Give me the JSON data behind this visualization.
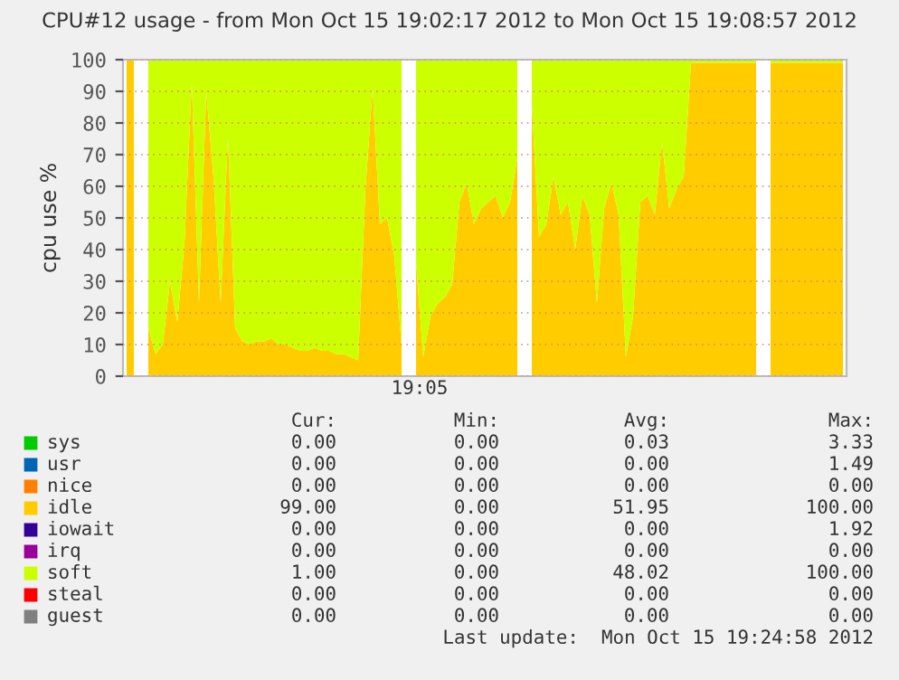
{
  "chart_data": {
    "type": "area",
    "stacked": true,
    "title": "CPU#12 usage - from Mon Oct 15 19:02:17 2012 to Mon Oct 15 19:08:57 2012",
    "ylabel": "cpu use %",
    "categories": [
      null,
      null,
      null,
      null,
      null,
      null,
      null,
      null,
      null,
      null,
      null,
      null,
      null,
      null,
      null,
      null,
      null,
      null,
      null,
      null,
      null,
      null,
      null,
      null,
      null,
      null,
      null,
      null,
      null,
      null,
      null,
      null,
      null,
      null,
      null,
      null,
      null,
      null,
      null,
      null,
      null,
      null,
      null,
      null,
      null,
      null,
      null,
      null,
      null,
      null,
      null,
      null,
      null,
      null,
      null,
      null,
      null,
      null,
      null,
      null,
      null,
      null,
      null,
      null,
      null,
      null,
      null,
      null,
      null,
      null,
      null,
      null,
      null,
      null,
      null,
      null,
      null,
      null,
      null,
      null,
      null,
      null,
      null,
      null,
      null,
      null,
      null,
      null,
      null,
      null,
      null,
      null,
      null,
      null,
      null,
      null,
      null,
      null,
      null,
      null
    ],
    "series": [
      {
        "name": "sys",
        "color": "#00cc00",
        "values": [
          null,
          null,
          null,
          null,
          null,
          null,
          null,
          null,
          null,
          null,
          null,
          null,
          null,
          null,
          null,
          null,
          null,
          null,
          null,
          null,
          null,
          null,
          null,
          null,
          null,
          null,
          null,
          null,
          null,
          null,
          null,
          null,
          null,
          null,
          null,
          null,
          null,
          null,
          null,
          null,
          null,
          null,
          null,
          null,
          null,
          null,
          null,
          null,
          null,
          null,
          null,
          null,
          null,
          null,
          null,
          null,
          null,
          null,
          null,
          null,
          null,
          null,
          null,
          null,
          null,
          null,
          null,
          null,
          null,
          null,
          null,
          null,
          null,
          null,
          null,
          null,
          null,
          null,
          null,
          null,
          null,
          null,
          null,
          null,
          null,
          null,
          null,
          null,
          null,
          null,
          null,
          null,
          null,
          null,
          null,
          null,
          null,
          null,
          null,
          null
        ]
      },
      {
        "name": "usr",
        "color": "#0066b3",
        "values": [
          null,
          null,
          null,
          null,
          null,
          null,
          null,
          null,
          null,
          null,
          null,
          null,
          null,
          null,
          null,
          null,
          null,
          null,
          null,
          null,
          null,
          null,
          null,
          null,
          null,
          null,
          null,
          null,
          null,
          null,
          null,
          null,
          null,
          null,
          null,
          null,
          null,
          null,
          null,
          null,
          null,
          null,
          null,
          null,
          null,
          null,
          null,
          null,
          null,
          null,
          null,
          null,
          null,
          null,
          null,
          null,
          null,
          null,
          null,
          null,
          null,
          null,
          null,
          null,
          null,
          null,
          null,
          null,
          null,
          null,
          null,
          null,
          null,
          null,
          null,
          null,
          null,
          null,
          null,
          null,
          null,
          null,
          null,
          null,
          null,
          null,
          null,
          null,
          null,
          null,
          null,
          null,
          null,
          null,
          null,
          null,
          null,
          null,
          null,
          null
        ]
      },
      {
        "name": "nice",
        "color": "#ff8000",
        "values": [
          null,
          null,
          null,
          null,
          null,
          null,
          null,
          null,
          null,
          null,
          null,
          null,
          null,
          null,
          null,
          null,
          null,
          null,
          null,
          null,
          null,
          null,
          null,
          null,
          null,
          null,
          null,
          null,
          null,
          null,
          null,
          null,
          null,
          null,
          null,
          null,
          null,
          null,
          null,
          null,
          null,
          null,
          null,
          null,
          null,
          null,
          null,
          null,
          null,
          null,
          null,
          null,
          null,
          null,
          null,
          null,
          null,
          null,
          null,
          null,
          null,
          null,
          null,
          null,
          null,
          null,
          null,
          null,
          null,
          null,
          null,
          null,
          null,
          null,
          null,
          null,
          null,
          null,
          null,
          null,
          null,
          null,
          null,
          null,
          null,
          null,
          null,
          null,
          null,
          null,
          null,
          null,
          null,
          null,
          null,
          null,
          null,
          null,
          null,
          null
        ]
      },
      {
        "name": "idle",
        "color": "#ffcc00",
        "values": [
          100,
          100,
          null,
          15,
          7,
          10,
          30,
          17,
          42,
          93,
          23,
          90,
          63,
          23,
          76,
          15,
          11,
          10,
          11,
          11,
          12,
          10,
          10,
          9,
          8,
          8,
          9,
          8,
          8,
          7,
          7,
          6,
          5,
          59,
          91,
          48,
          50,
          38,
          10,
          null,
          36,
          6,
          19,
          23,
          25,
          29,
          55,
          61,
          48,
          53,
          55,
          57,
          50,
          55,
          69,
          null,
          86,
          44,
          48,
          63,
          51,
          55,
          40,
          57,
          51,
          23,
          53,
          61,
          51,
          6,
          19,
          55,
          57,
          51,
          74,
          53,
          59,
          63,
          99,
          99,
          99,
          99,
          99,
          99,
          99,
          99,
          99,
          99,
          null,
          99,
          99,
          99,
          99,
          99,
          99,
          99,
          99,
          99,
          99,
          99
        ]
      },
      {
        "name": "iowait",
        "color": "#330099",
        "values": [
          null,
          null,
          null,
          null,
          null,
          null,
          null,
          null,
          null,
          null,
          null,
          null,
          null,
          null,
          null,
          null,
          null,
          null,
          null,
          null,
          null,
          null,
          null,
          null,
          null,
          null,
          null,
          null,
          null,
          null,
          null,
          null,
          null,
          null,
          null,
          null,
          null,
          null,
          null,
          null,
          null,
          null,
          null,
          null,
          null,
          null,
          null,
          null,
          null,
          null,
          null,
          null,
          null,
          null,
          null,
          null,
          null,
          null,
          null,
          null,
          null,
          null,
          null,
          null,
          null,
          null,
          null,
          null,
          null,
          null,
          null,
          null,
          null,
          null,
          null,
          null,
          null,
          null,
          null,
          null,
          null,
          null,
          null,
          null,
          null,
          null,
          null,
          null,
          null,
          null,
          null,
          null,
          null,
          null,
          null,
          null,
          null,
          null,
          null,
          null
        ]
      },
      {
        "name": "irq",
        "color": "#990099",
        "values": [
          null,
          null,
          null,
          null,
          null,
          null,
          null,
          null,
          null,
          null,
          null,
          null,
          null,
          null,
          null,
          null,
          null,
          null,
          null,
          null,
          null,
          null,
          null,
          null,
          null,
          null,
          null,
          null,
          null,
          null,
          null,
          null,
          null,
          null,
          null,
          null,
          null,
          null,
          null,
          null,
          null,
          null,
          null,
          null,
          null,
          null,
          null,
          null,
          null,
          null,
          null,
          null,
          null,
          null,
          null,
          null,
          null,
          null,
          null,
          null,
          null,
          null,
          null,
          null,
          null,
          null,
          null,
          null,
          null,
          null,
          null,
          null,
          null,
          null,
          null,
          null,
          null,
          null,
          null,
          null,
          null,
          null,
          null,
          null,
          null,
          null,
          null,
          null,
          null,
          null,
          null,
          null,
          null,
          null,
          null,
          null,
          null,
          null,
          null,
          null
        ]
      },
      {
        "name": "soft",
        "color": "#ccff00",
        "values": [
          null,
          null,
          null,
          85,
          93,
          90,
          70,
          83,
          58,
          7,
          77,
          10,
          37,
          77,
          24,
          85,
          89,
          90,
          89,
          89,
          88,
          90,
          90,
          91,
          92,
          92,
          91,
          92,
          92,
          93,
          93,
          94,
          95,
          41,
          9,
          52,
          50,
          62,
          90,
          null,
          64,
          94,
          81,
          77,
          75,
          71,
          45,
          39,
          52,
          47,
          45,
          43,
          50,
          45,
          31,
          null,
          14,
          56,
          52,
          37,
          49,
          45,
          60,
          43,
          49,
          77,
          47,
          39,
          49,
          94,
          81,
          45,
          43,
          49,
          26,
          47,
          41,
          37,
          1,
          1,
          1,
          1,
          1,
          1,
          1,
          1,
          1,
          1,
          null,
          1,
          1,
          1,
          1,
          1,
          1,
          1,
          1,
          1,
          1,
          1
        ]
      },
      {
        "name": "steal",
        "color": "#ff0000",
        "values": [
          null,
          null,
          null,
          null,
          null,
          null,
          null,
          null,
          null,
          null,
          null,
          null,
          null,
          null,
          null,
          null,
          null,
          null,
          null,
          null,
          null,
          null,
          null,
          null,
          null,
          null,
          null,
          null,
          null,
          null,
          null,
          null,
          null,
          null,
          null,
          null,
          null,
          null,
          null,
          null,
          null,
          null,
          null,
          null,
          null,
          null,
          null,
          null,
          null,
          null,
          null,
          null,
          null,
          null,
          null,
          null,
          null,
          null,
          null,
          null,
          null,
          null,
          null,
          null,
          null,
          null,
          null,
          null,
          null,
          null,
          null,
          null,
          null,
          null,
          null,
          null,
          null,
          null,
          null,
          null,
          null,
          null,
          null,
          null,
          null,
          null,
          null,
          null,
          null,
          null,
          null,
          null,
          null,
          null,
          null,
          null,
          null,
          null,
          null,
          null
        ]
      },
      {
        "name": "guest",
        "color": "#808080",
        "values": [
          null,
          null,
          null,
          null,
          null,
          null,
          null,
          null,
          null,
          null,
          null,
          null,
          null,
          null,
          null,
          null,
          null,
          null,
          null,
          null,
          null,
          null,
          null,
          null,
          null,
          null,
          null,
          null,
          null,
          null,
          null,
          null,
          null,
          null,
          null,
          null,
          null,
          null,
          null,
          null,
          null,
          null,
          null,
          null,
          null,
          null,
          null,
          null,
          null,
          null,
          null,
          null,
          null,
          null,
          null,
          null,
          null,
          null,
          null,
          null,
          null,
          null,
          null,
          null,
          null,
          null,
          null,
          null,
          null,
          null,
          null,
          null,
          null,
          null,
          null,
          null,
          null,
          null,
          null,
          null,
          null,
          null,
          null,
          null,
          null,
          null,
          null,
          null,
          null,
          null,
          null,
          null,
          null,
          null,
          null,
          null,
          null,
          null,
          null,
          null
        ]
      }
    ],
    "ylim": [
      0,
      100
    ],
    "yticks": [
      0,
      10,
      20,
      30,
      40,
      50,
      60,
      70,
      80,
      90,
      100
    ],
    "grid": "y",
    "legend": "bottom",
    "annotations": [
      "19:05",
      "Cur:",
      "Min:",
      "Avg:",
      "Max:",
      "0.00",
      "0.00",
      "0.03",
      "3.33",
      "0.00",
      "0.00",
      "0.00",
      "1.49",
      "0.00",
      "0.00",
      "0.00",
      "0.00",
      "99.00",
      "0.00",
      "51.95",
      "100.00",
      "0.00",
      "0.00",
      "0.00",
      "1.92",
      "0.00",
      "0.00",
      "0.00",
      "0.00",
      "1.00",
      "0.00",
      "48.02",
      "100.00",
      "0.00",
      "0.00",
      "0.00",
      "0.00",
      "0.00",
      "0.00",
      "0.00",
      "0.00",
      "Last update:  Mon Oct 15 19:24:58 2012"
    ]
  }
}
